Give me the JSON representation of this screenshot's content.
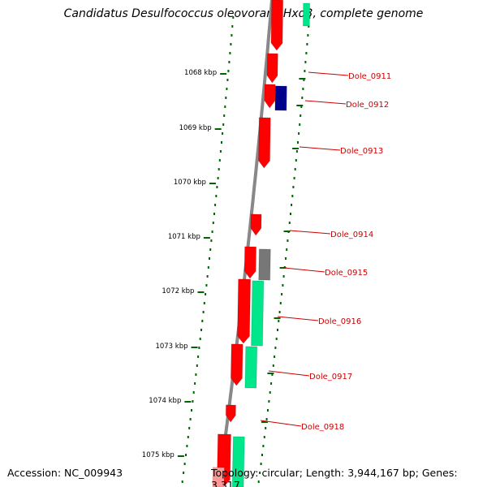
{
  "title": "Candidatus Desulfococcus oleovorans Hxd3, complete genome",
  "footer": {
    "accession": "Accession: NC_009943",
    "summary": "Topology: circular; Length: 3,944,167 bp; Genes: 3,317"
  },
  "colors": {
    "forward_cds": "#ff0000",
    "reverse_cds": "#00e68a",
    "other_feature": "#00008b",
    "pseudo": "#777777",
    "axis": "#888888",
    "tick": "#006400",
    "label": "#cc0000"
  },
  "scale": {
    "unit": "kbp",
    "ticks": [
      {
        "value": 1068,
        "label": "1068 kbp"
      },
      {
        "value": 1069,
        "label": "1069 kbp"
      },
      {
        "value": 1070,
        "label": "1070 kbp"
      },
      {
        "value": 1071,
        "label": "1071 kbp"
      },
      {
        "value": 1072,
        "label": "1072 kbp"
      },
      {
        "value": 1073,
        "label": "1073 kbp"
      },
      {
        "value": 1074,
        "label": "1074 kbp"
      },
      {
        "value": 1075,
        "label": "1075 kbp"
      }
    ]
  },
  "genes": [
    {
      "name": "Dole_0911"
    },
    {
      "name": "Dole_0912"
    },
    {
      "name": "Dole_0913"
    },
    {
      "name": "Dole_0914"
    },
    {
      "name": "Dole_0915"
    },
    {
      "name": "Dole_0916"
    },
    {
      "name": "Dole_0917"
    },
    {
      "name": "Dole_0918"
    }
  ]
}
